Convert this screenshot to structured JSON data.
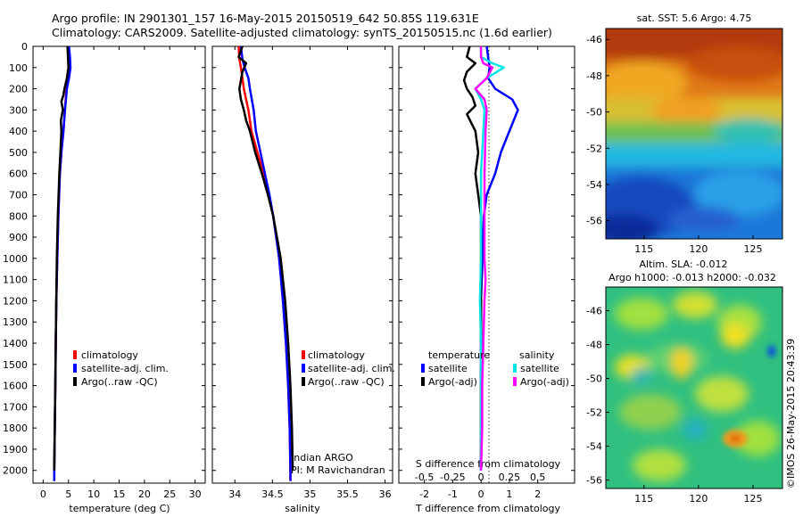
{
  "header": {
    "line1": "Argo profile: IN 2901301_157 16-May-2015 20150519_642 50.85S 119.631E",
    "line2": "Climatology: CARS2009. Satellite-adjusted climatology: synTS_20150515.nc (1.6d earlier)"
  },
  "credit": "©IMOS 26-May-2015 20:43:39",
  "chart_data": [
    {
      "id": "temperature",
      "type": "line",
      "xlabel": "temperature (deg C)",
      "x_ticks": [
        "0",
        "5",
        "10",
        "15",
        "20",
        "25",
        "30"
      ],
      "xlim": [
        -2,
        32
      ],
      "ylim": [
        2060,
        0
      ],
      "y_ticks": [
        "0",
        "100",
        "200",
        "300",
        "400",
        "500",
        "600",
        "700",
        "800",
        "900",
        "1000",
        "1100",
        "1200",
        "1300",
        "1400",
        "1500",
        "1600",
        "1700",
        "1800",
        "1900",
        "2000"
      ],
      "legend": [
        "climatology",
        "satellite-adj. clim.",
        "Argo(..raw -QC)"
      ],
      "series": [
        {
          "name": "climatology",
          "color": "#ff0000",
          "depth": [
            0,
            50,
            100,
            150,
            200,
            300,
            400,
            500,
            600,
            800,
            1000,
            1200,
            1400,
            1600,
            1800,
            2000,
            2050
          ],
          "values": [
            5.0,
            5.1,
            5.2,
            5.0,
            4.6,
            4.3,
            4.0,
            3.6,
            3.3,
            3.0,
            2.8,
            2.6,
            2.5,
            2.4,
            2.3,
            2.2,
            2.2
          ]
        },
        {
          "name": "satellite-adj. clim.",
          "color": "#0000ff",
          "depth": [
            0,
            50,
            100,
            150,
            200,
            300,
            400,
            500,
            600,
            800,
            1000,
            1200,
            1400,
            1600,
            1800,
            2000,
            2050
          ],
          "values": [
            5.1,
            5.3,
            5.4,
            5.1,
            4.7,
            4.3,
            4.0,
            3.6,
            3.3,
            3.0,
            2.8,
            2.6,
            2.5,
            2.4,
            2.3,
            2.2,
            2.2
          ]
        },
        {
          "name": "Argo(..raw -QC)",
          "color": "#000000",
          "depth": [
            0,
            50,
            100,
            150,
            200,
            230,
            260,
            300,
            350,
            400,
            500,
            600,
            800,
            1000,
            1200,
            1400,
            1600,
            1800,
            2000
          ],
          "values": [
            4.8,
            4.9,
            5.0,
            4.7,
            4.2,
            4.0,
            3.6,
            3.9,
            3.5,
            3.6,
            3.4,
            3.2,
            2.9,
            2.7,
            2.6,
            2.5,
            2.4,
            2.3,
            2.2
          ]
        }
      ]
    },
    {
      "id": "salinity",
      "type": "line",
      "xlabel": "salinity",
      "x_ticks": [
        "34",
        "34.5",
        "35",
        "35.5",
        "36"
      ],
      "xlim": [
        33.7,
        36.1
      ],
      "ylim": [
        2060,
        0
      ],
      "legend": [
        "climatology",
        "satellite-adj. clim.",
        "Argo(..raw -QC)"
      ],
      "annotation": [
        "Indian ARGO",
        "PI: M Ravichandran"
      ],
      "series": [
        {
          "name": "climatology",
          "color": "#ff0000",
          "depth": [
            0,
            60,
            100,
            150,
            200,
            300,
            400,
            500,
            600,
            700,
            800,
            1000,
            1200,
            1400,
            1600,
            1800,
            2000,
            2050
          ],
          "values": [
            34.05,
            34.06,
            34.08,
            34.1,
            34.12,
            34.18,
            34.22,
            34.3,
            34.38,
            34.45,
            34.51,
            34.59,
            34.64,
            34.68,
            34.71,
            34.73,
            34.74,
            34.74
          ]
        },
        {
          "name": "satellite-adj. clim.",
          "color": "#0000ff",
          "depth": [
            0,
            60,
            100,
            150,
            200,
            300,
            400,
            500,
            600,
            700,
            800,
            1000,
            1200,
            1400,
            1600,
            1800,
            2000,
            2050
          ],
          "values": [
            34.08,
            34.1,
            34.13,
            34.18,
            34.2,
            34.25,
            34.28,
            34.34,
            34.4,
            34.46,
            34.51,
            34.59,
            34.64,
            34.68,
            34.71,
            34.73,
            34.74,
            34.74
          ]
        },
        {
          "name": "Argo(..raw -QC)",
          "color": "#000000",
          "depth": [
            0,
            50,
            80,
            120,
            160,
            200,
            250,
            300,
            350,
            400,
            500,
            600,
            700,
            800,
            1000,
            1200,
            1400,
            1600,
            1800,
            2000
          ],
          "values": [
            34.1,
            34.05,
            34.15,
            34.1,
            34.08,
            34.06,
            34.08,
            34.12,
            34.15,
            34.2,
            34.27,
            34.36,
            34.44,
            34.51,
            34.61,
            34.67,
            34.71,
            34.74,
            34.76,
            34.77
          ]
        }
      ]
    },
    {
      "id": "difference",
      "type": "line",
      "xlabel": "T difference from climatology",
      "xlabel_top": "S difference from climatology",
      "x_ticks": [
        "-2",
        "-1",
        "0",
        "1",
        "2"
      ],
      "s_ticks": [
        "-0.5",
        "-0.25",
        "0",
        "0.25",
        "0.5"
      ],
      "xlim": [
        -2.9,
        3.3
      ],
      "ylim": [
        2060,
        0
      ],
      "legend_headers": [
        "temperature",
        "salinity"
      ],
      "legend": [
        "satellite",
        "Argo(-adj)",
        "satellite",
        "Argo(-adj)"
      ],
      "series": [
        {
          "name": "temperature satellite",
          "color": "#0000ff",
          "depth": [
            0,
            50,
            100,
            150,
            200,
            250,
            300,
            400,
            500,
            600,
            700,
            800,
            1000,
            1200,
            1400,
            1600,
            1800,
            2000
          ],
          "values": [
            0.2,
            0.25,
            0.3,
            0.25,
            0.5,
            1.1,
            1.3,
            1.0,
            0.7,
            0.5,
            0.2,
            0.1,
            0.05,
            0,
            0,
            0,
            0,
            0
          ]
        },
        {
          "name": "temperature Argo(-adj)",
          "color": "#000000",
          "depth": [
            0,
            50,
            80,
            120,
            160,
            200,
            240,
            280,
            320,
            400,
            500,
            600,
            700,
            800,
            1000,
            1200,
            1400,
            1600,
            1800,
            2000
          ],
          "values": [
            -0.4,
            -0.5,
            -0.2,
            -0.5,
            -0.6,
            -0.5,
            -0.3,
            -0.2,
            -0.5,
            -0.2,
            -0.1,
            -0.2,
            -0.1,
            0,
            0,
            0,
            0,
            0,
            0,
            0
          ]
        },
        {
          "name": "salinity satellite",
          "color": "#00e5e5",
          "depth": [
            0,
            50,
            80,
            100,
            150,
            200,
            250,
            300,
            400,
            600,
            800,
            1000,
            1200,
            1400,
            1600,
            1800,
            2000
          ],
          "values": [
            0,
            0,
            0.1,
            0.2,
            0.05,
            -0.05,
            0,
            0.03,
            0.02,
            0,
            0,
            0,
            -0.01,
            0,
            0,
            0,
            0
          ]
        },
        {
          "name": "salinity Argo(-adj)",
          "color": "#ff00ff",
          "depth": [
            0,
            50,
            80,
            100,
            150,
            200,
            250,
            300,
            400,
            600,
            800,
            1000,
            1100,
            1200,
            1400,
            1600,
            1800,
            2000
          ],
          "values": [
            0,
            0,
            0.02,
            0.1,
            0.05,
            -0.05,
            0.03,
            0.05,
            0.04,
            0.03,
            0.03,
            0.03,
            0.04,
            0.03,
            0.02,
            0.01,
            0.01,
            0
          ]
        }
      ]
    },
    {
      "id": "sst_map",
      "type": "heatmap",
      "title": "sat. SST: 5.6 Argo: 4.75",
      "x_ticks": [
        "115",
        "120",
        "125"
      ],
      "y_ticks": [
        "-46",
        "-48",
        "-50",
        "-52",
        "-54",
        "-56"
      ]
    },
    {
      "id": "sla_map",
      "type": "heatmap",
      "title": "Altim. SLA: -0.012",
      "subtitle": "Argo h1000: -0.013 h2000: -0.032",
      "x_ticks": [
        "115",
        "120",
        "125"
      ],
      "y_ticks": [
        "-46",
        "-48",
        "-50",
        "-52",
        "-54",
        "-56"
      ]
    }
  ]
}
